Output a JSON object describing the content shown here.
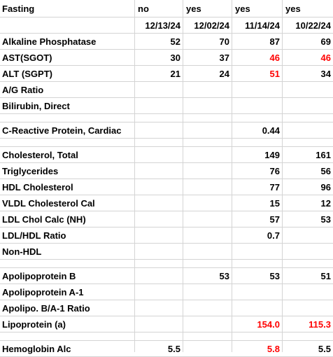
{
  "header": {
    "label": "Fasting",
    "fasting": [
      "no",
      "yes",
      "yes",
      "yes"
    ],
    "dates": [
      "12/13/24",
      "12/02/24",
      "11/14/24",
      "10/22/24"
    ]
  },
  "rows": [
    {
      "label": "Alkaline Phosphatase",
      "values": [
        "52",
        "70",
        "87",
        "69"
      ],
      "flags": [
        false,
        false,
        false,
        false
      ]
    },
    {
      "label": "AST(SGOT)",
      "values": [
        "30",
        "37",
        "46",
        "46"
      ],
      "flags": [
        false,
        false,
        true,
        true
      ]
    },
    {
      "label": "ALT (SGPT)",
      "values": [
        "21",
        "24",
        "51",
        "34"
      ],
      "flags": [
        false,
        false,
        true,
        false
      ]
    },
    {
      "label": "A/G Ratio",
      "values": [
        "",
        "",
        "",
        ""
      ],
      "flags": [
        false,
        false,
        false,
        false
      ]
    },
    {
      "label": "Bilirubin, Direct",
      "values": [
        "",
        "",
        "",
        ""
      ],
      "flags": [
        false,
        false,
        false,
        false
      ]
    },
    {
      "label": "C-Reactive Protein, Cardiac",
      "values": [
        "",
        "",
        "0.44",
        ""
      ],
      "flags": [
        false,
        false,
        false,
        false
      ]
    },
    {
      "label": "Cholesterol, Total",
      "values": [
        "",
        "",
        "149",
        "161"
      ],
      "flags": [
        false,
        false,
        false,
        false
      ]
    },
    {
      "label": "Triglycerides",
      "values": [
        "",
        "",
        "76",
        "56"
      ],
      "flags": [
        false,
        false,
        false,
        false
      ]
    },
    {
      "label": "HDL Cholesterol",
      "values": [
        "",
        "",
        "77",
        "96"
      ],
      "flags": [
        false,
        false,
        false,
        false
      ]
    },
    {
      "label": "VLDL Cholesterol Cal",
      "values": [
        "",
        "",
        "15",
        "12"
      ],
      "flags": [
        false,
        false,
        false,
        false
      ]
    },
    {
      "label": "LDL Chol Calc (NH)",
      "values": [
        "",
        "",
        "57",
        "53"
      ],
      "flags": [
        false,
        false,
        false,
        false
      ]
    },
    {
      "label": "LDL/HDL Ratio",
      "values": [
        "",
        "",
        "0.7",
        ""
      ],
      "flags": [
        false,
        false,
        false,
        false
      ]
    },
    {
      "label": "Non-HDL",
      "values": [
        "",
        "",
        "",
        ""
      ],
      "flags": [
        false,
        false,
        false,
        false
      ]
    },
    {
      "label": "Apolipoprotein B",
      "values": [
        "",
        "53",
        "53",
        "51"
      ],
      "flags": [
        false,
        false,
        false,
        false
      ]
    },
    {
      "label": "Apolipoprotein A-1",
      "values": [
        "",
        "",
        "",
        ""
      ],
      "flags": [
        false,
        false,
        false,
        false
      ]
    },
    {
      "label": "Apolipo. B/A-1 Ratio",
      "values": [
        "",
        "",
        "",
        ""
      ],
      "flags": [
        false,
        false,
        false,
        false
      ]
    },
    {
      "label": "Lipoprotein (a)",
      "values": [
        "",
        "",
        "154.0",
        "115.3"
      ],
      "flags": [
        false,
        false,
        true,
        true
      ]
    },
    {
      "label": "Hemoglobin Alc",
      "values": [
        "5.5",
        "",
        "5.8",
        "5.5"
      ],
      "flags": [
        false,
        false,
        true,
        false
      ]
    }
  ],
  "colors": {
    "flag": "#ff0000",
    "normal": "#000000",
    "grid": "#d4d4d4"
  }
}
